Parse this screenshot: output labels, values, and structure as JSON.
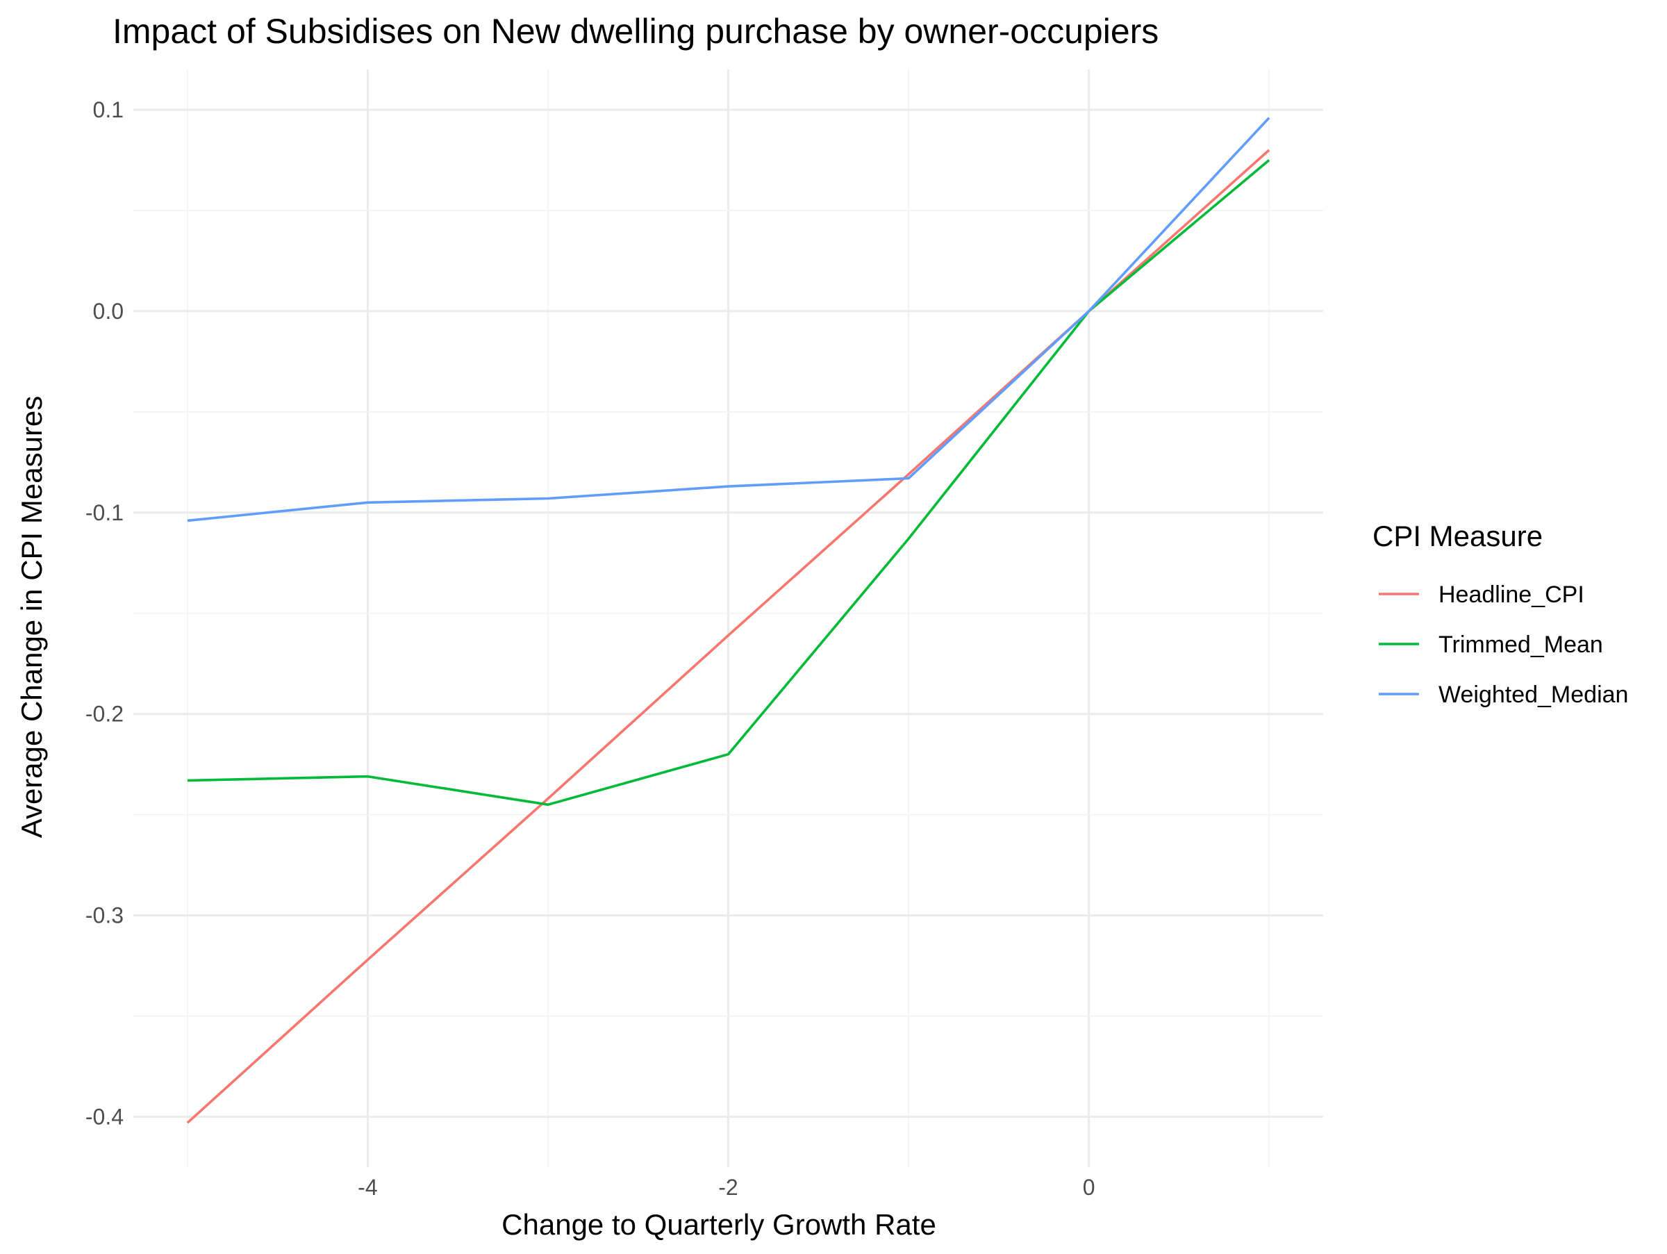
{
  "chart_data": {
    "type": "line",
    "title": "Impact of Subsidises on New dwelling purchase by owner-occupiers",
    "xlabel": "Change to Quarterly Growth Rate",
    "ylabel": "Average Change in CPI Measures",
    "x": [
      -5,
      -4,
      -3,
      -2,
      -1,
      0,
      1
    ],
    "xlim": [
      -5.3,
      1.3
    ],
    "ylim": [
      -0.425,
      0.12
    ],
    "x_ticks": [
      -4,
      -2,
      0
    ],
    "x_tick_labels": [
      "-4",
      "-2",
      "0"
    ],
    "y_ticks": [
      -0.4,
      -0.3,
      -0.2,
      -0.1,
      0.0,
      0.1
    ],
    "y_tick_labels": [
      "-0.4",
      "-0.3",
      "-0.2",
      "-0.1",
      "0.0",
      "0.1"
    ],
    "grid": true,
    "legend": {
      "title": "CPI Measure",
      "position": "right"
    },
    "series": [
      {
        "name": "Headline_CPI",
        "color": "#F8766D",
        "values": [
          -0.403,
          -0.322,
          -0.242,
          -0.161,
          -0.081,
          0.0,
          0.08
        ]
      },
      {
        "name": "Trimmed_Mean",
        "color": "#00BA38",
        "values": [
          -0.233,
          -0.231,
          -0.245,
          -0.22,
          -0.113,
          0.0,
          0.075
        ]
      },
      {
        "name": "Weighted_Median",
        "color": "#619CFF",
        "values": [
          -0.104,
          -0.095,
          -0.093,
          -0.087,
          -0.083,
          0.0,
          0.096
        ]
      }
    ]
  }
}
